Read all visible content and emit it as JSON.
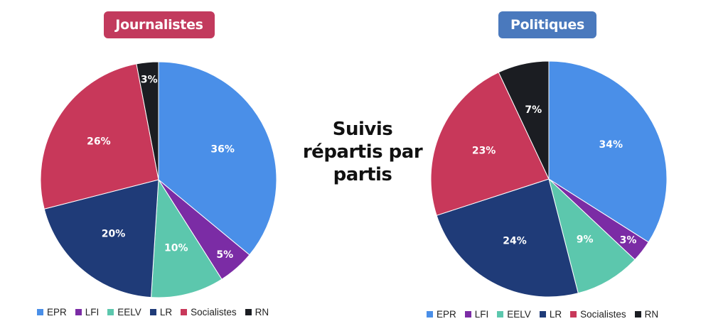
{
  "center_title": [
    "Suivis",
    "répartis par",
    "partis"
  ],
  "chart_data": [
    {
      "type": "pie",
      "title": "Journalistes",
      "title_color": "#c23a5d",
      "labels": [
        "EPR",
        "LFI",
        "EELV",
        "LR",
        "Socialistes",
        "RN"
      ],
      "colors": [
        "#4a8fe8",
        "#7b2ca5",
        "#5cc7ad",
        "#1f3b78",
        "#c8385a",
        "#1b1d22"
      ],
      "values": [
        36,
        5,
        10,
        20,
        26,
        3
      ],
      "value_labels": [
        "36%",
        "5%",
        "10%",
        "20%",
        "26%",
        "3%"
      ],
      "legend_position": "bottom"
    },
    {
      "type": "pie",
      "title": "Politiques",
      "title_color": "#4a79bd",
      "labels": [
        "EPR",
        "LFI",
        "EELV",
        "LR",
        "Socialistes",
        "RN"
      ],
      "colors": [
        "#4a8fe8",
        "#7b2ca5",
        "#5cc7ad",
        "#1f3b78",
        "#c8385a",
        "#1b1d22"
      ],
      "values": [
        34,
        3,
        9,
        24,
        23,
        7
      ],
      "value_labels": [
        "34%",
        "3%",
        "9%",
        "24%",
        "23%",
        "7%"
      ],
      "legend_position": "bottom"
    }
  ]
}
